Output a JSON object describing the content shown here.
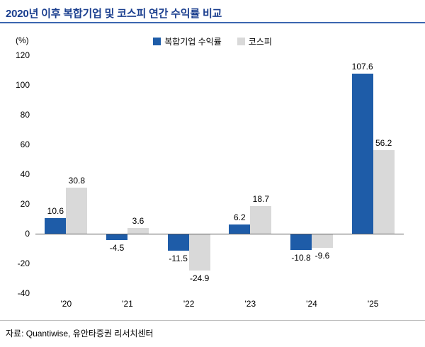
{
  "header": {
    "title": "2020년 이후 복합기업 및 코스피 연간 수익률 비교"
  },
  "chart_data": {
    "type": "bar",
    "title": "2020년 이후 복합기업 및 코스피 연간 수익률 비교",
    "unit_label": "(%)",
    "categories": [
      "'20",
      "'21",
      "'22",
      "'23",
      "'24",
      "'25"
    ],
    "series": [
      {
        "name": "복합기업 수익률",
        "color": "#1E5CA8",
        "values": [
          10.6,
          -4.5,
          -11.5,
          6.2,
          -10.8,
          107.6
        ]
      },
      {
        "name": "코스피",
        "color": "#D9D9D9",
        "values": [
          30.8,
          3.6,
          -24.9,
          18.7,
          -9.6,
          56.2
        ]
      }
    ],
    "ylim": [
      -40,
      120
    ],
    "yticks": [
      120,
      100,
      80,
      60,
      40,
      20,
      0,
      -20,
      -40
    ],
    "grid": "off",
    "legend_position": "top"
  },
  "colors": {
    "title_text": "#1B3F8F",
    "title_rule": "#3B66B0",
    "axis_line": "#595959"
  },
  "footer": {
    "source": "자료: Quantiwise, 유안타증권 리서치센터"
  }
}
